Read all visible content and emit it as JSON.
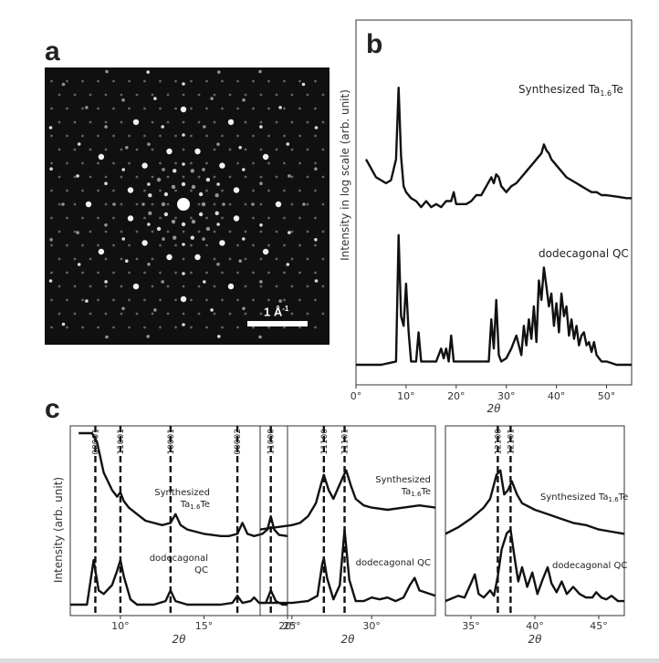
{
  "panels": {
    "a": "a",
    "b": "b",
    "c": "c"
  },
  "diffraction": {
    "scale_label": "1 Å",
    "scale_exponent": "-1"
  },
  "chart_data": [
    {
      "type": "line",
      "panel": "b",
      "xlabel": "2θ",
      "ylabel": "Intensity in log scale (arb. unit)",
      "xlim": [
        0,
        55
      ],
      "ylim": [
        0,
        10
      ],
      "xticks": [
        0,
        10,
        20,
        30,
        40,
        50
      ],
      "xtick_labels": [
        "0°",
        "10°",
        "20°",
        "30°",
        "40°",
        "50°"
      ],
      "series": [
        {
          "name": "Synthesized Ta1.6Te",
          "label_main": "Synthesized Ta",
          "label_sub": "1.6",
          "label_tail": "Te",
          "x": [
            2,
            3,
            4,
            5,
            6,
            7,
            8,
            8.5,
            9,
            9.5,
            10,
            11,
            12,
            13,
            14,
            15,
            16,
            17,
            18,
            19,
            19.5,
            20,
            21,
            22,
            23,
            24,
            25,
            26,
            27,
            27.5,
            28,
            28.5,
            29,
            30,
            31,
            32,
            33,
            34,
            35,
            36,
            37,
            37.5,
            38,
            38.5,
            39,
            40,
            41,
            42,
            43,
            44,
            45,
            46,
            47,
            48,
            49,
            50,
            52,
            54,
            55
          ],
          "y": [
            6.8,
            6.5,
            6.2,
            6.1,
            6.0,
            6.1,
            6.8,
            9.2,
            6.9,
            5.9,
            5.7,
            5.5,
            5.4,
            5.2,
            5.4,
            5.2,
            5.3,
            5.2,
            5.4,
            5.4,
            5.7,
            5.3,
            5.3,
            5.3,
            5.4,
            5.6,
            5.6,
            5.9,
            6.2,
            6.0,
            6.3,
            6.2,
            5.9,
            5.7,
            5.9,
            6.0,
            6.2,
            6.4,
            6.6,
            6.8,
            7.0,
            7.3,
            7.1,
            7.0,
            6.8,
            6.6,
            6.4,
            6.2,
            6.1,
            6.0,
            5.9,
            5.8,
            5.7,
            5.7,
            5.6,
            5.6,
            5.55,
            5.5,
            5.5
          ]
        },
        {
          "name": "dodecagonal QC",
          "x": [
            0,
            5,
            8,
            8.5,
            9,
            9.5,
            10,
            10.5,
            11,
            12,
            12.5,
            13,
            13.5,
            14,
            16,
            17,
            17.5,
            18,
            18.5,
            19,
            19.5,
            20,
            22,
            25,
            26.5,
            27,
            27.5,
            28,
            28.5,
            29,
            30,
            31,
            32,
            33,
            33.5,
            34,
            34.5,
            35,
            35.5,
            36,
            36.5,
            37,
            37.5,
            38,
            38.5,
            39,
            39.5,
            40,
            40.5,
            41,
            41.5,
            42,
            42.5,
            43,
            43.5,
            44,
            44.5,
            45,
            45.5,
            46,
            46.5,
            47,
            47.5,
            48,
            48.5,
            49,
            50,
            52,
            55
          ],
          "y": [
            0,
            0,
            0.1,
            4.0,
            1.5,
            1.2,
            2.5,
            1.0,
            0.1,
            0.1,
            1.0,
            0.1,
            0.1,
            0.1,
            0.1,
            0.5,
            0.2,
            0.5,
            0.1,
            0.9,
            0.1,
            0.1,
            0.1,
            0.1,
            0.1,
            1.4,
            0.5,
            2.0,
            0.3,
            0.1,
            0.2,
            0.5,
            0.9,
            0.3,
            1.2,
            0.6,
            1.4,
            0.8,
            1.8,
            0.7,
            2.6,
            2.0,
            3.0,
            2.4,
            1.8,
            2.2,
            1.2,
            1.9,
            1.0,
            2.2,
            1.5,
            1.8,
            0.9,
            1.4,
            0.8,
            1.2,
            0.6,
            0.9,
            1.0,
            0.6,
            0.7,
            0.4,
            0.7,
            0.3,
            0.2,
            0.1,
            0.1,
            0.0,
            0.0
          ]
        }
      ]
    },
    {
      "type": "line",
      "panel": "c1",
      "xlabel": "2θ",
      "ylabel": "Intensity (arb. unit)",
      "xlim": [
        7,
        20
      ],
      "ylim": [
        0,
        10
      ],
      "xticks": [
        10,
        15,
        20
      ],
      "xtick_labels": [
        "10°",
        "15°",
        "20°"
      ],
      "reference_lines": [
        {
          "x": 8.5,
          "label": "00001"
        },
        {
          "x": 10,
          "label": "11001"
        },
        {
          "x": 13,
          "label": "10001"
        },
        {
          "x": 17,
          "label": "00002"
        },
        {
          "x": 19,
          "label": "11000"
        }
      ],
      "series": [
        {
          "name": "Synthesized Ta1.6Te",
          "label_main": "Synthesized",
          "label_sub_line": "Ta",
          "label_sub": "1.6",
          "label_tail": "Te",
          "x": [
            7.5,
            8.0,
            8.3,
            8.6,
            9.0,
            9.5,
            9.8,
            10.0,
            10.2,
            10.5,
            11,
            11.5,
            12,
            12.5,
            13,
            13.3,
            13.6,
            14,
            14.5,
            15,
            15.5,
            16,
            16.5,
            17,
            17.3,
            17.6,
            18,
            18.5,
            18.8,
            19,
            19.2,
            19.5,
            20
          ],
          "y": [
            10,
            10,
            10,
            9.6,
            8.2,
            7.4,
            7.1,
            7.3,
            6.9,
            6.6,
            6.3,
            6.0,
            5.9,
            5.8,
            5.9,
            6.3,
            5.8,
            5.6,
            5.5,
            5.4,
            5.35,
            5.3,
            5.3,
            5.4,
            5.9,
            5.4,
            5.3,
            5.4,
            5.6,
            6.2,
            5.6,
            5.35,
            5.3
          ]
        },
        {
          "name": "dodecagonal QC",
          "label_main": "dodecagonal",
          "label_sub_line": "QC",
          "x": [
            7,
            8.0,
            8.4,
            8.7,
            9.0,
            9.5,
            9.8,
            10.0,
            10.2,
            10.6,
            11,
            12,
            12.7,
            13.0,
            13.3,
            14,
            15,
            16,
            16.7,
            17.0,
            17.3,
            17.8,
            18.0,
            18.3,
            18.7,
            19.0,
            19.3,
            19.7,
            20
          ],
          "y": [
            0.1,
            0.1,
            2.6,
            0.9,
            0.7,
            1.2,
            2.0,
            2.6,
            1.7,
            0.4,
            0.1,
            0.1,
            0.3,
            0.9,
            0.3,
            0.1,
            0.1,
            0.1,
            0.2,
            0.6,
            0.2,
            0.3,
            0.5,
            0.2,
            0.2,
            0.9,
            0.3,
            0.1,
            0.1
          ]
        }
      ]
    },
    {
      "type": "line",
      "panel": "c2",
      "xlabel": "2θ",
      "xlim": [
        23,
        34
      ],
      "ylim": [
        0,
        10
      ],
      "xticks": [
        25,
        30
      ],
      "xtick_labels": [
        "25°",
        "30°"
      ],
      "reference_lines": [
        {
          "x": 27,
          "label": "11100"
        },
        {
          "x": 28.3,
          "label": "11101"
        }
      ],
      "series": [
        {
          "name": "Synthesized Ta1.6Te",
          "label_main": "Synthesized",
          "label_sub_line": "Ta",
          "label_sub": "1.6",
          "label_tail": "Te",
          "x": [
            23,
            24,
            25,
            25.5,
            26,
            26.5,
            26.8,
            27.0,
            27.3,
            27.6,
            27.9,
            28.2,
            28.4,
            28.7,
            29,
            29.5,
            30,
            31,
            32,
            33,
            34
          ],
          "y": [
            5.6,
            5.7,
            5.8,
            5.9,
            6.2,
            6.8,
            7.6,
            8.1,
            7.4,
            7.0,
            7.5,
            8.0,
            8.3,
            7.6,
            7.0,
            6.7,
            6.6,
            6.5,
            6.6,
            6.7,
            6.6
          ]
        },
        {
          "name": "dodecagonal QC",
          "x": [
            23,
            25,
            26,
            26.6,
            26.9,
            27.0,
            27.2,
            27.6,
            28.0,
            28.3,
            28.6,
            29,
            29.5,
            30,
            30.5,
            31,
            31.5,
            32,
            32.4,
            32.7,
            33,
            34
          ],
          "y": [
            0.2,
            0.2,
            0.3,
            0.6,
            2.4,
            2.7,
            1.6,
            0.4,
            1.2,
            4.3,
            1.5,
            0.3,
            0.3,
            0.5,
            0.4,
            0.5,
            0.3,
            0.5,
            1.2,
            1.6,
            0.9,
            0.6
          ]
        }
      ]
    },
    {
      "type": "line",
      "panel": "c3",
      "xlabel": "2θ",
      "xlim": [
        33,
        47
      ],
      "ylim": [
        0,
        10
      ],
      "xticks": [
        35,
        40,
        45
      ],
      "xtick_labels": [
        "35°",
        "40°",
        "45°"
      ],
      "reference_lines": [
        {
          "x": 37.1,
          "label": "12100"
        },
        {
          "x": 38.1,
          "label": "12101"
        }
      ],
      "series": [
        {
          "name": "Synthesized Ta1.6Te",
          "label_main": "Synthesized Ta",
          "label_sub": "1.6",
          "label_tail": "Te",
          "x": [
            33,
            34,
            35,
            36,
            36.5,
            37.0,
            37.3,
            37.6,
            37.9,
            38.2,
            38.6,
            39,
            40,
            41,
            42,
            43,
            44,
            45,
            46,
            47
          ],
          "y": [
            5.4,
            5.7,
            6.1,
            6.6,
            7.0,
            8.1,
            8.3,
            7.2,
            7.4,
            7.8,
            7.2,
            6.8,
            6.5,
            6.3,
            6.1,
            5.9,
            5.8,
            5.6,
            5.5,
            5.4
          ]
        },
        {
          "name": "dodecagonal QC",
          "x": [
            33,
            34,
            34.5,
            35,
            35.3,
            35.6,
            36,
            36.5,
            36.8,
            37.1,
            37.4,
            37.8,
            38.1,
            38.4,
            38.7,
            39,
            39.4,
            39.8,
            40.2,
            40.6,
            41.0,
            41.3,
            41.7,
            42.1,
            42.5,
            43,
            43.5,
            44,
            44.5,
            44.8,
            45.2,
            45.6,
            46,
            46.5,
            47
          ],
          "y": [
            0.3,
            0.6,
            0.5,
            1.3,
            1.8,
            0.7,
            0.5,
            0.9,
            0.6,
            1.7,
            3.2,
            4.1,
            4.3,
            2.8,
            1.4,
            2.2,
            1.1,
            1.9,
            0.7,
            1.5,
            2.2,
            1.3,
            0.8,
            1.4,
            0.7,
            1.1,
            0.7,
            0.5,
            0.5,
            0.8,
            0.5,
            0.4,
            0.6,
            0.3,
            0.3
          ]
        }
      ]
    }
  ]
}
